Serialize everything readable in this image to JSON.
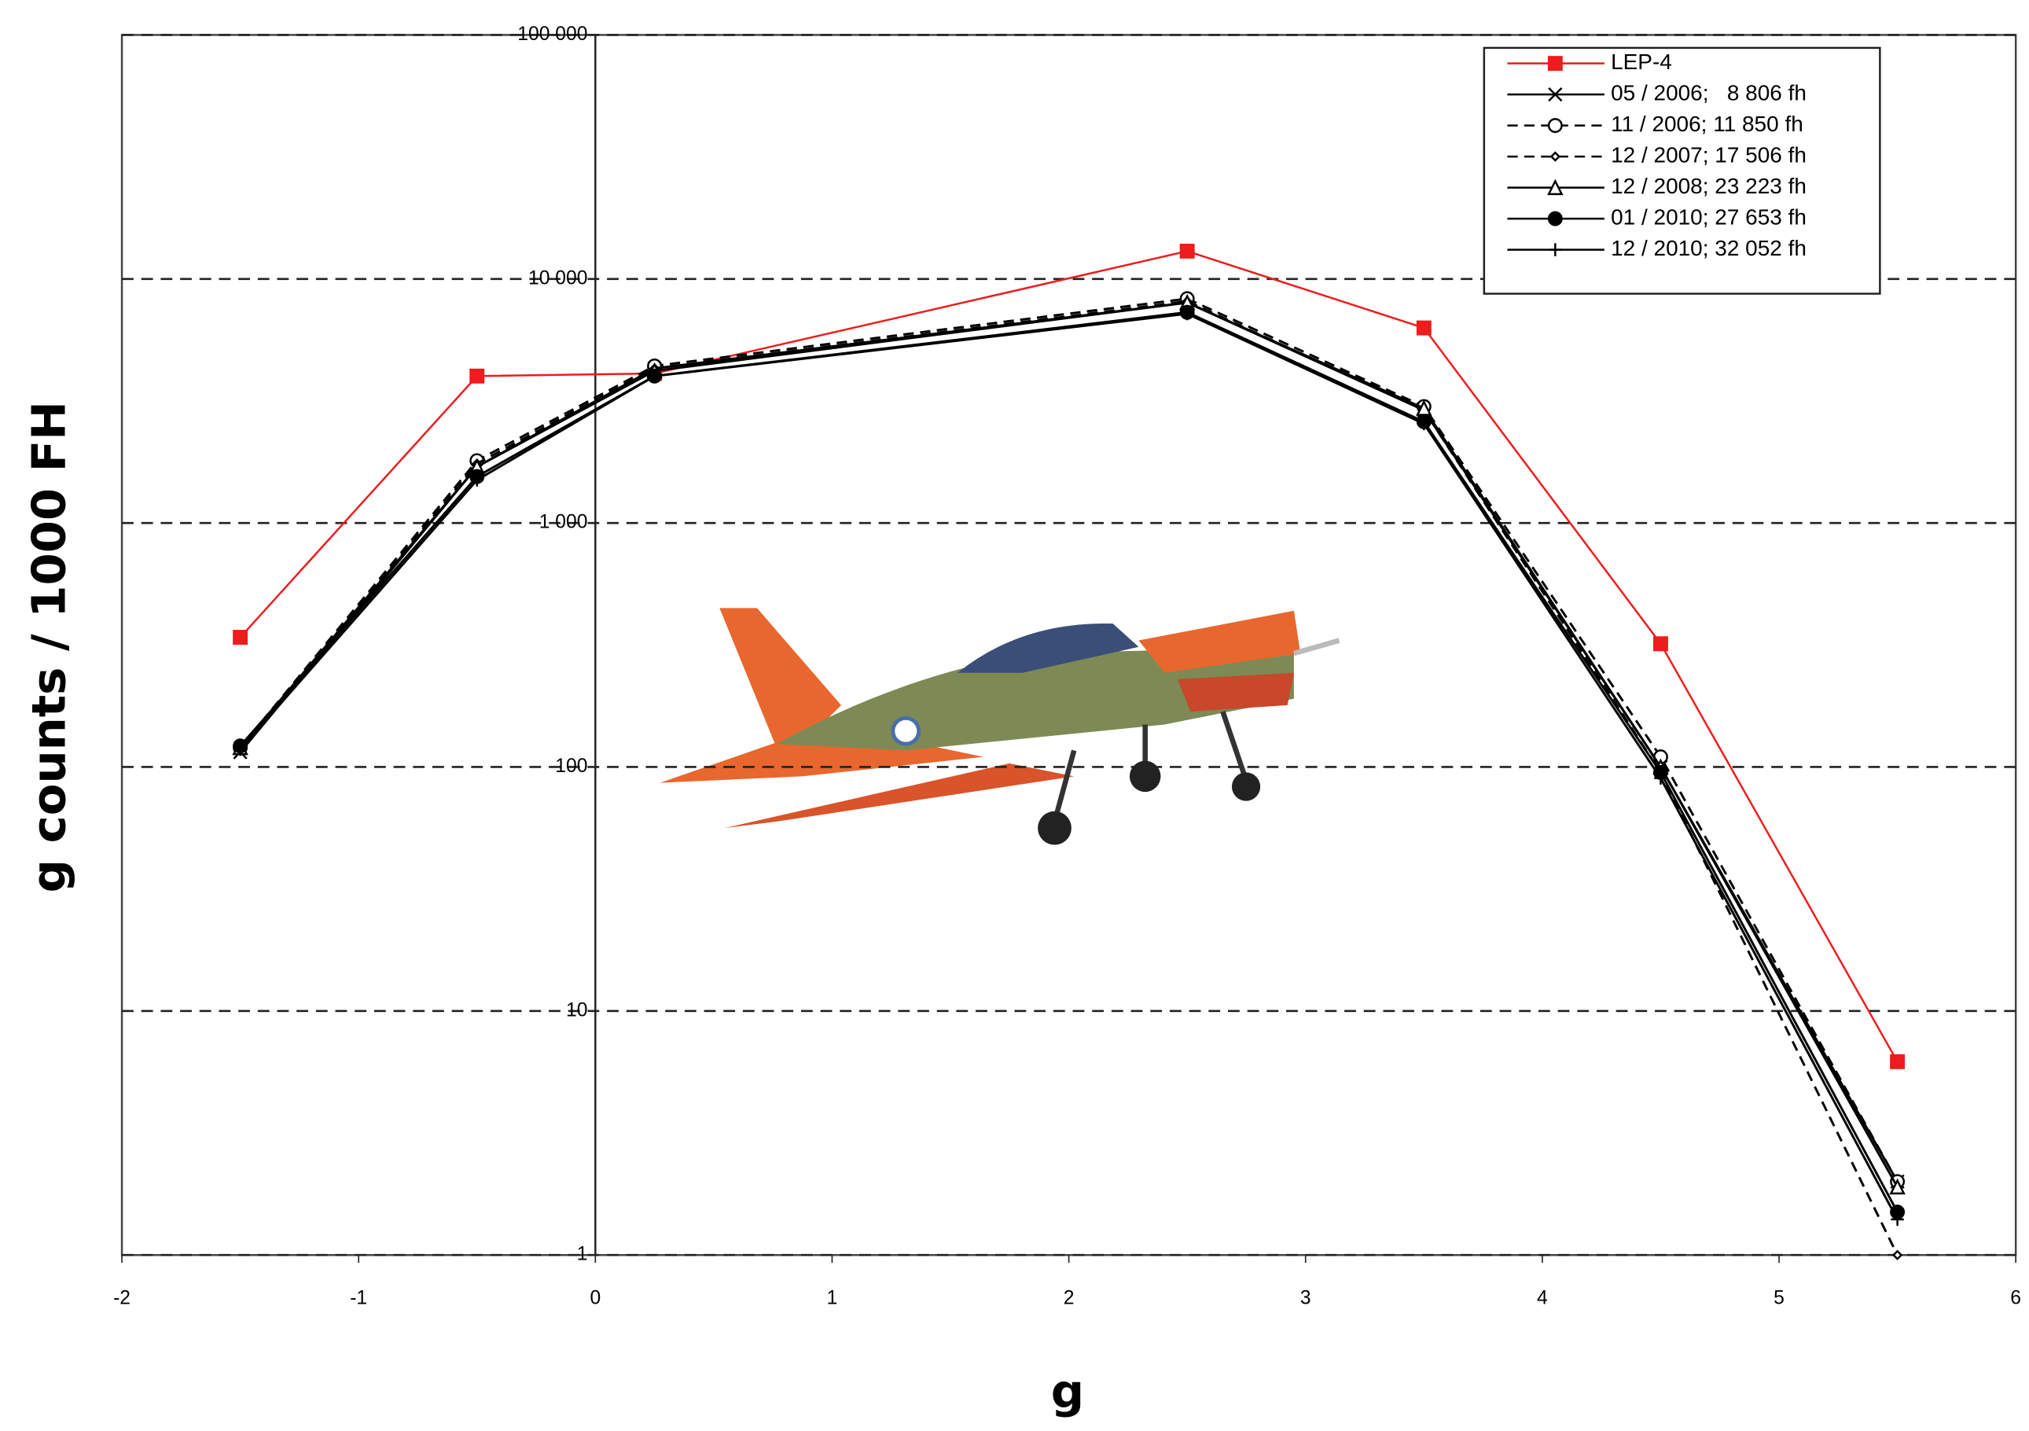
{
  "chart_data": {
    "type": "line",
    "log_y": true,
    "grid": true,
    "legend": "upper right",
    "xlabel": "g",
    "ylabel": "g counts / 1000 FH",
    "xlim": [
      -2,
      6
    ],
    "xticks": [
      -2,
      -1,
      0,
      1,
      2,
      3,
      4,
      5,
      6
    ],
    "ylim": [
      1,
      100000
    ],
    "yticks": [
      1,
      10,
      100,
      {
        "value": 1000,
        "label": "1 000"
      },
      {
        "value": 10000,
        "label": "10 000"
      },
      {
        "value": 100000,
        "label": "100 000"
      }
    ],
    "x": [
      -1.5,
      -0.5,
      0.25,
      2.5,
      3.5,
      4.5,
      5.5
    ],
    "series": [
      {
        "name": "LEP-4",
        "color": "#ee1c1c",
        "marker": "square",
        "dashed": false,
        "values": [
          340,
          4000,
          4100,
          13000,
          6300,
          320,
          6.2
        ]
      },
      {
        "name": "05 / 2006;   8 806 fh",
        "color": "#000000",
        "marker": "x",
        "dashed": false,
        "values": [
          115,
          1700,
          4300,
          8000,
          2900,
          100,
          2.0
        ]
      },
      {
        "name": "11 / 2006; 11 850 fh",
        "color": "#000000",
        "marker": "circle",
        "dashed": true,
        "values": [
          120,
          1800,
          4400,
          8300,
          3000,
          110,
          2.0
        ]
      },
      {
        "name": "12 / 2007; 17 506 fh",
        "color": "#000000",
        "marker": "diamond",
        "dashed": true,
        "values": [
          118,
          1750,
          4300,
          8100,
          2900,
          95,
          1.0
        ]
      },
      {
        "name": "12 / 2008; 23 223 fh",
        "color": "#000000",
        "marker": "triangle",
        "dashed": false,
        "values": [
          120,
          1700,
          4200,
          8000,
          2950,
          100,
          1.9
        ]
      },
      {
        "name": "01 / 2010; 27 653 fh",
        "color": "#000000",
        "marker": "dot",
        "dashed": false,
        "values": [
          122,
          1550,
          4000,
          7300,
          2600,
          95,
          1.5
        ]
      },
      {
        "name": "12 / 2010; 32 052 fh",
        "color": "#000000",
        "marker": "plus",
        "dashed": false,
        "values": [
          118,
          1500,
          4000,
          7200,
          2550,
          90,
          1.4
        ]
      }
    ]
  }
}
